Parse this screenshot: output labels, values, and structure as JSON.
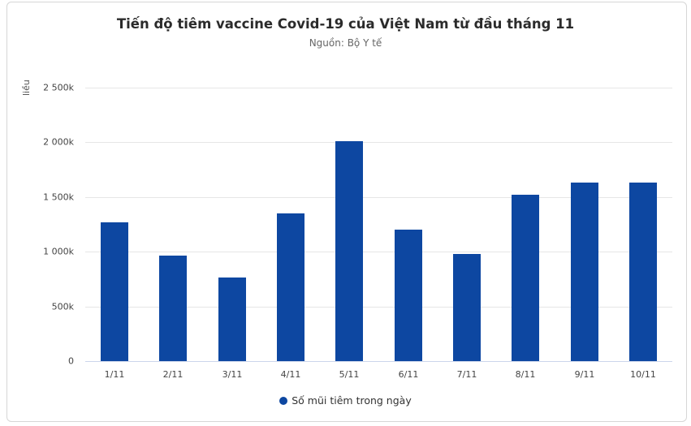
{
  "header": {
    "title": "Tiến độ tiêm vaccine Covid-19 của Việt Nam từ đầu tháng 11",
    "subtitle": "Nguồn: Bộ Y tế"
  },
  "legend": {
    "label": "Số mũi tiêm trong ngày",
    "color": "#0d47a1"
  },
  "axis": {
    "ylabel": "liều",
    "yticks": [
      "0",
      "500k",
      "1 000k",
      "1 500k",
      "2 000k",
      "2 500k"
    ]
  },
  "chart_data": {
    "type": "bar",
    "title": "Tiến độ tiêm vaccine Covid-19 của Việt Nam từ đầu tháng 11",
    "subtitle": "Nguồn: Bộ Y tế",
    "xlabel": "",
    "ylabel": "liều",
    "ylim": [
      0,
      2500000
    ],
    "yticks": [
      0,
      500000,
      1000000,
      1500000,
      2000000,
      2500000
    ],
    "grid": true,
    "legend_position": "bottom",
    "categories": [
      "1/11",
      "2/11",
      "3/11",
      "4/11",
      "5/11",
      "6/11",
      "7/11",
      "8/11",
      "9/11",
      "10/11"
    ],
    "series": [
      {
        "name": "Số mũi tiêm trong ngày",
        "color": "#0d47a1",
        "values": [
          1268000,
          964000,
          764000,
          1350000,
          2010000,
          1202000,
          979000,
          1521000,
          1632000,
          1632000
        ]
      }
    ]
  }
}
